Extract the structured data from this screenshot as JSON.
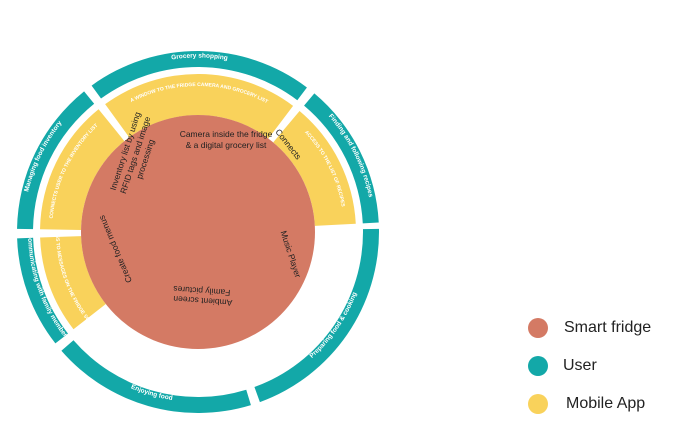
{
  "colors": {
    "smart_fridge": "#D47A64",
    "user": "#13A8A8",
    "mobile_app": "#F9D25B",
    "text_dark": "#222222",
    "text_light": "#FFFFFF"
  },
  "outer_ring": [
    {
      "label": "Grocery shopping"
    },
    {
      "label": "Finding and following recipes"
    },
    {
      "label": "Preparing food & cooking"
    },
    {
      "label": "Enjoying food"
    },
    {
      "label": "Communicating with family members"
    },
    {
      "label": "Managing food inventory"
    }
  ],
  "middle_ring": [
    {
      "label": "A WINDOW TO THE FRIDGE CAMERA AND GROCERY LIST"
    },
    {
      "label": "ACCESS TO THE LIST OF RECIPES"
    },
    {
      "label": "ACCESS TO MESSAGES ON THE FRIDGE SCREEN"
    },
    {
      "label": "CONNECTS USER TO THE INVENTORY LIST"
    }
  ],
  "inner_circle": {
    "camera_line1": "Camera inside the fridge",
    "camera_line2": "& a digital grocery list",
    "connects": "Connects",
    "music": "Music Player",
    "ambient_line1": "Ambient screen",
    "ambient_line2": "Family pictures",
    "menus": "Create food menus",
    "inventory_line1": "Inventory list by using",
    "inventory_line2": "RFID tags and image",
    "inventory_line3": "processing"
  },
  "legend": [
    {
      "label": "Smart fridge"
    },
    {
      "label": "User"
    },
    {
      "label": "Mobile App"
    }
  ]
}
